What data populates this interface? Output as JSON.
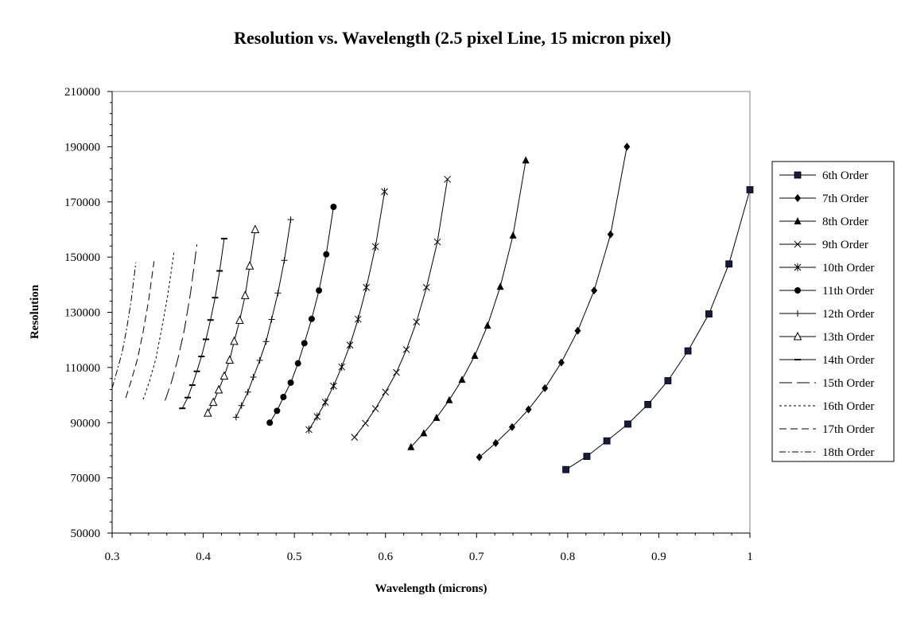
{
  "chart_data": {
    "type": "line",
    "title": "Resolution vs. Wavelength (2.5 pixel Line, 15 micron pixel)",
    "xlabel": "Wavelength (microns)",
    "ylabel": "Resolution",
    "xlim": [
      0.3,
      1.0
    ],
    "ylim": [
      50000,
      210000
    ],
    "xticks": [
      "0.3",
      "0.4",
      "0.5",
      "0.6",
      "0.7",
      "0.8",
      "0.9",
      "1"
    ],
    "yticks": [
      "50000",
      "70000",
      "90000",
      "110000",
      "130000",
      "150000",
      "170000",
      "190000",
      "210000"
    ],
    "grid": false,
    "legend_position": "right",
    "series": [
      {
        "name": "6th Order",
        "marker": "square",
        "dash": "solid",
        "x": [
          0.798,
          0.821,
          0.843,
          0.866,
          0.888,
          0.91,
          0.932,
          0.955,
          0.977,
          1.0
        ],
        "y": [
          73000,
          77800,
          83400,
          89500,
          96600,
          105200,
          116000,
          129400,
          147500,
          174400
        ]
      },
      {
        "name": "7th Order",
        "marker": "diamond",
        "dash": "solid",
        "x": [
          0.703,
          0.721,
          0.739,
          0.757,
          0.775,
          0.793,
          0.811,
          0.829,
          0.847,
          0.865
        ],
        "y": [
          77500,
          82600,
          88400,
          94800,
          102500,
          111800,
          123300,
          137900,
          158200,
          190000
        ]
      },
      {
        "name": "8th Order",
        "marker": "triangle",
        "dash": "solid",
        "x": [
          0.628,
          0.642,
          0.656,
          0.67,
          0.684,
          0.698,
          0.712,
          0.726,
          0.74,
          0.754
        ],
        "y": [
          81200,
          86200,
          91800,
          98200,
          105600,
          114300,
          125200,
          139300,
          157900,
          185100
        ]
      },
      {
        "name": "9th Order",
        "marker": "x",
        "dash": "solid",
        "x": [
          0.566,
          0.578,
          0.589,
          0.6,
          0.612,
          0.623,
          0.634,
          0.645,
          0.657,
          0.668
        ],
        "y": [
          84700,
          89800,
          95100,
          101100,
          108200,
          116500,
          126500,
          139000,
          155500,
          178200
        ]
      },
      {
        "name": "10th Order",
        "marker": "asterisk",
        "dash": "solid",
        "x": [
          0.516,
          0.525,
          0.534,
          0.543,
          0.552,
          0.561,
          0.57,
          0.579,
          0.589,
          0.599
        ],
        "y": [
          87500,
          92200,
          97400,
          103300,
          110200,
          118100,
          127500,
          139000,
          153800,
          173700
        ]
      },
      {
        "name": "11th Order",
        "marker": "circle",
        "dash": "solid",
        "x": [
          0.473,
          0.481,
          0.488,
          0.496,
          0.504,
          0.511,
          0.519,
          0.527,
          0.535,
          0.543
        ],
        "y": [
          90000,
          94300,
          99300,
          104500,
          111500,
          118800,
          127600,
          137900,
          151000,
          168200
        ]
      },
      {
        "name": "12th Order",
        "marker": "plus",
        "dash": "solid",
        "x": [
          0.436,
          0.442,
          0.449,
          0.455,
          0.462,
          0.469,
          0.475,
          0.482,
          0.489,
          0.496
        ],
        "y": [
          92000,
          96200,
          101100,
          106500,
          112600,
          119400,
          127400,
          137000,
          148800,
          163600
        ]
      },
      {
        "name": "13th Order",
        "marker": "triangle-open",
        "dash": "solid",
        "x": [
          0.405,
          0.411,
          0.417,
          0.423,
          0.429,
          0.434,
          0.44,
          0.446,
          0.451,
          0.457
        ],
        "y": [
          93500,
          97400,
          101900,
          106900,
          112700,
          119500,
          127100,
          136100,
          146800,
          160000
        ]
      },
      {
        "name": "14th Order",
        "marker": "dash",
        "dash": "solid",
        "x": [
          0.377,
          0.383,
          0.388,
          0.393,
          0.398,
          0.403,
          0.408,
          0.413,
          0.418,
          0.423
        ],
        "y": [
          95200,
          99100,
          103600,
          108600,
          114000,
          120200,
          127200,
          135300,
          145000,
          156700
        ]
      },
      {
        "name": "15th Order",
        "marker": "none",
        "dash": "long-dash",
        "x": [
          0.358,
          0.365,
          0.372,
          0.379,
          0.386,
          0.393
        ],
        "y": [
          98000,
          104600,
          112900,
          123200,
          136800,
          154600
        ]
      },
      {
        "name": "16th Order",
        "marker": "none",
        "dash": "short-dash",
        "x": [
          0.334,
          0.341,
          0.348,
          0.354,
          0.361,
          0.368
        ],
        "y": [
          98400,
          105000,
          113200,
          123400,
          136100,
          152000
        ]
      },
      {
        "name": "17th Order",
        "marker": "none",
        "dash": "medium-dash",
        "x": [
          0.315,
          0.321,
          0.328,
          0.334,
          0.34,
          0.346
        ],
        "y": [
          99000,
          105300,
          113300,
          123000,
          134100,
          148500
        ]
      },
      {
        "name": "18th Order",
        "marker": "none",
        "dash": "dash-dot",
        "x": [
          0.3,
          0.305,
          0.311,
          0.316,
          0.321,
          0.326
        ],
        "y": [
          102500,
          108300,
          115500,
          124000,
          134600,
          148000
        ]
      }
    ]
  }
}
